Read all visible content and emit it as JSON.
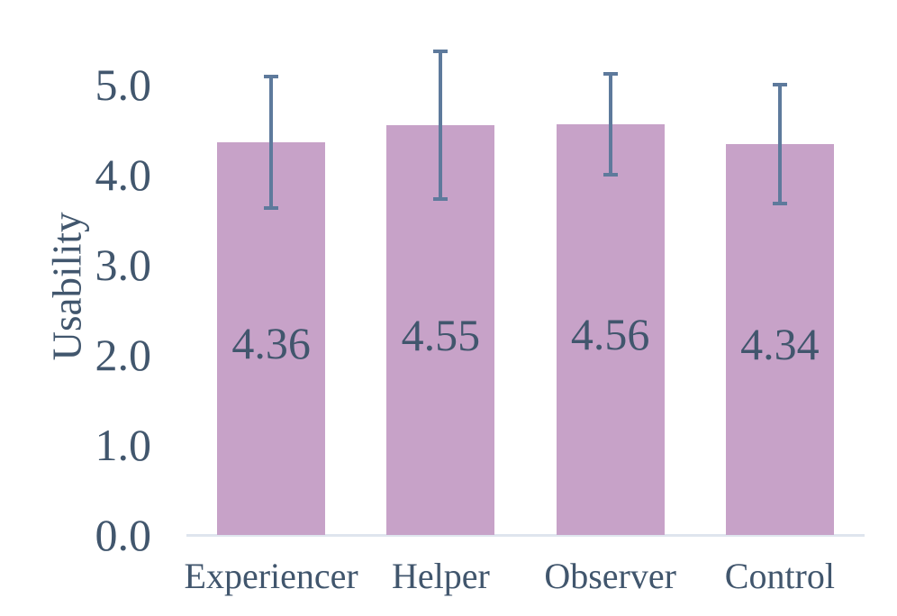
{
  "chart_data": {
    "type": "bar",
    "title": "",
    "ylabel": "Usability",
    "xlabel": "",
    "categories": [
      "Experiencer",
      "Helper",
      "Observer",
      "Control"
    ],
    "values": [
      4.36,
      4.55,
      4.56,
      4.34
    ],
    "data_labels": [
      "4.36",
      "4.55",
      "4.56",
      "4.34"
    ],
    "errors_plus_minus": [
      0.73,
      0.82,
      0.56,
      0.66
    ],
    "y_ticks": [
      "0.0",
      "1.0",
      "2.0",
      "3.0",
      "4.0",
      "5.0"
    ],
    "ylim": [
      0,
      5.5
    ],
    "grid": false,
    "legend": "none",
    "colors": {
      "bar_fill": "#c7a2c8",
      "error_bar": "#5e7a9c",
      "text": "#41566d",
      "axis_line": "#dfe5ee",
      "background": "#ffffff"
    }
  }
}
